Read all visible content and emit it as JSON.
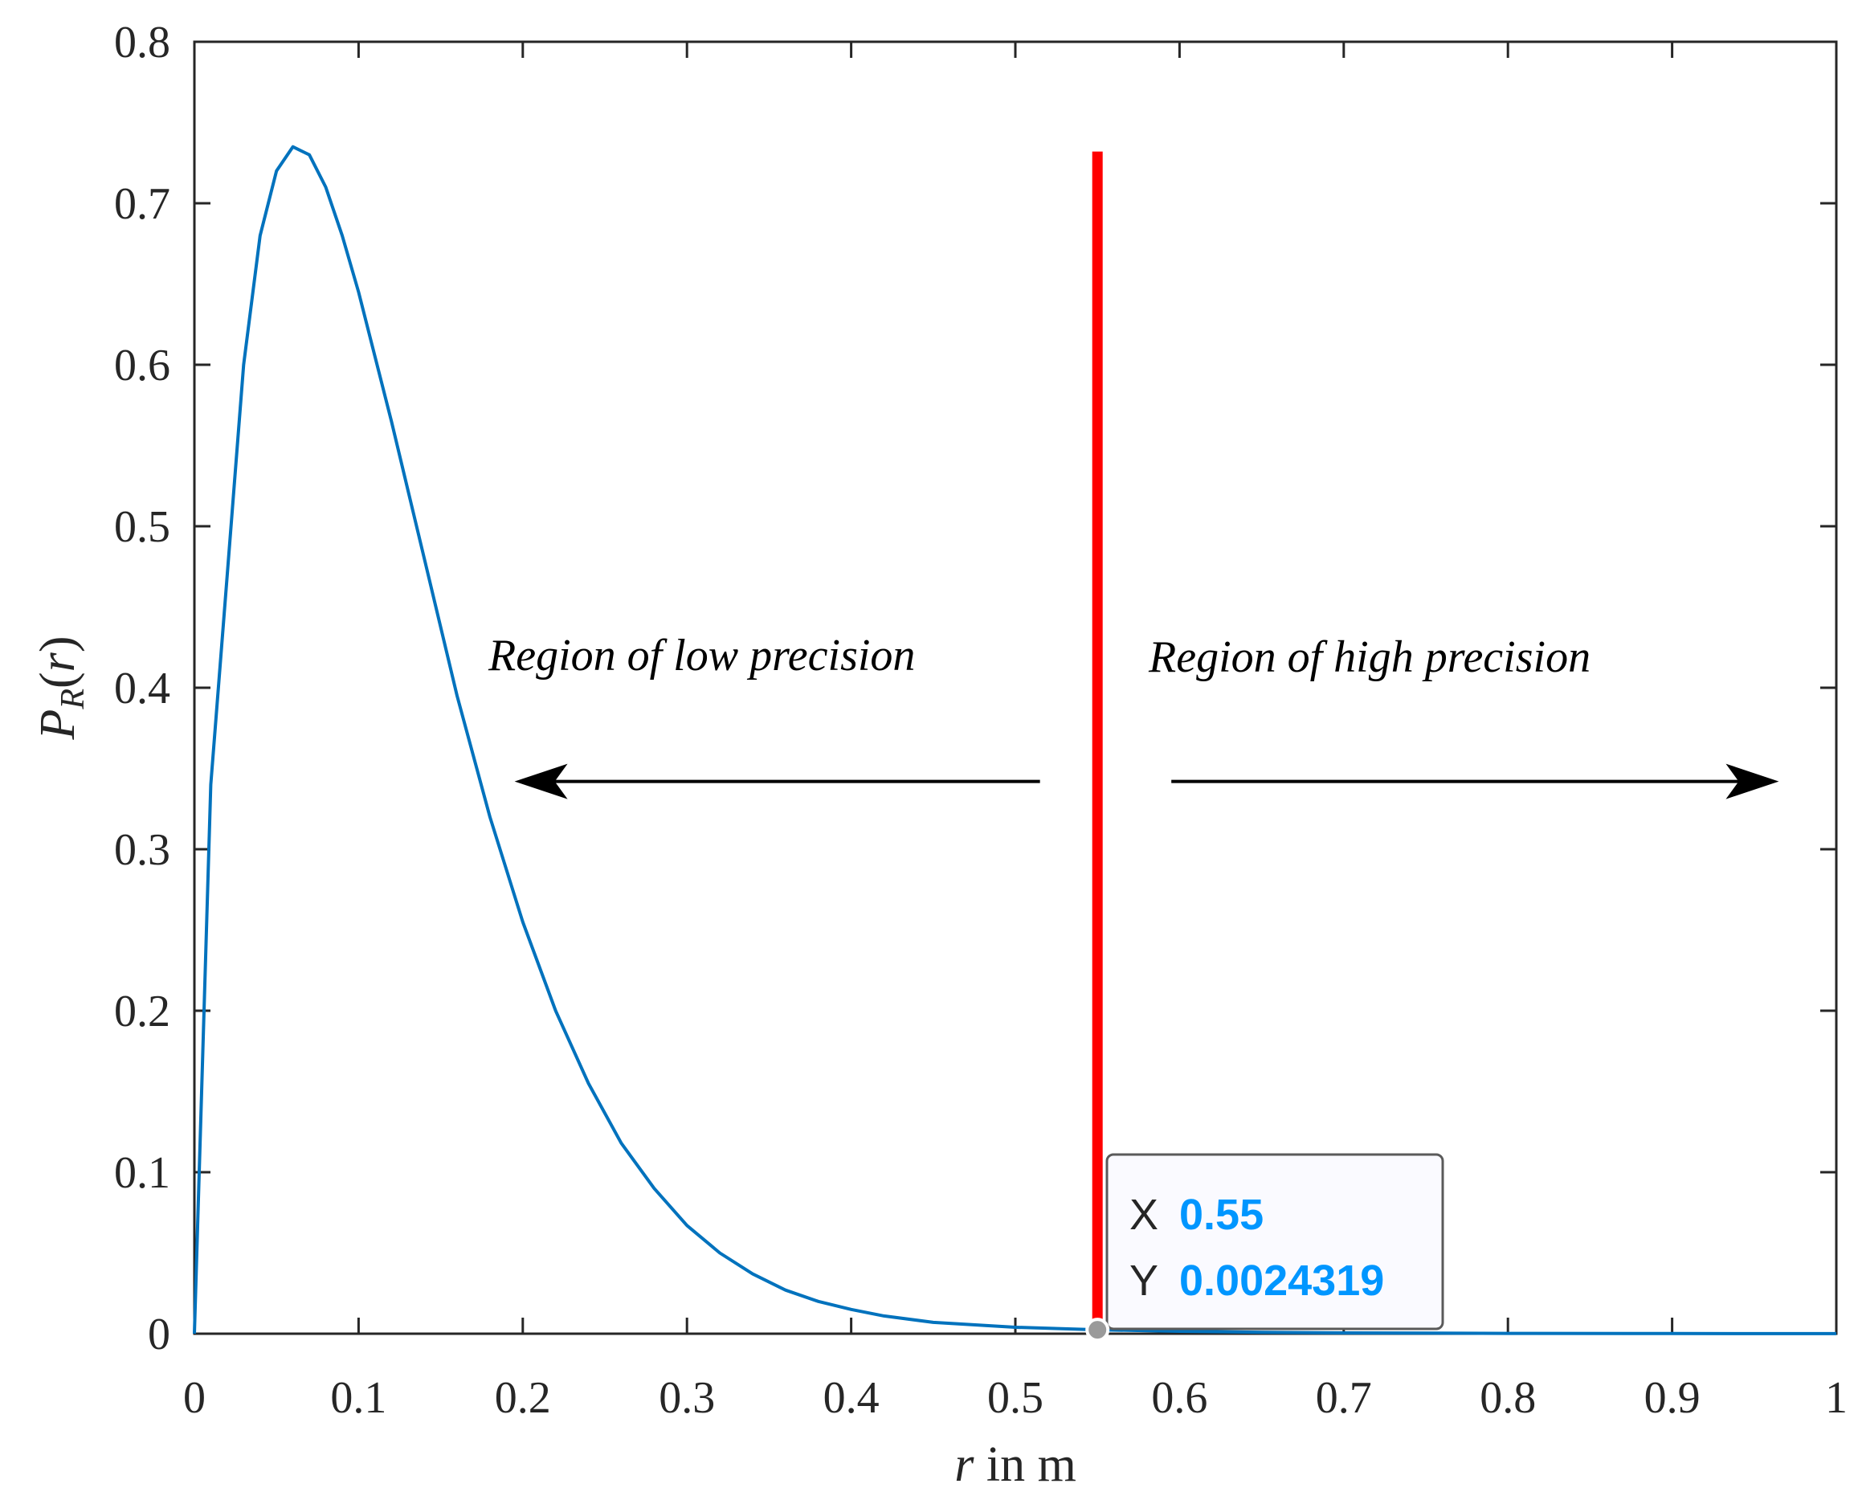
{
  "chart_data": {
    "type": "line",
    "xlabel_var": "r",
    "xlabel_rest": " in m",
    "ylabel": "PR(r)",
    "ylabel_main": "P",
    "ylabel_sub": "R",
    "ylabel_paren_open": "(",
    "ylabel_var": "r",
    "ylabel_paren_close": ")",
    "xlim": [
      0,
      1
    ],
    "ylim": [
      0,
      0.8
    ],
    "xticks": [
      0,
      0.1,
      0.2,
      0.3,
      0.4,
      0.5,
      0.6,
      0.7,
      0.8,
      0.9,
      1
    ],
    "xtick_labels": [
      "0",
      "0.1",
      "0.2",
      "0.3",
      "0.4",
      "0.5",
      "0.6",
      "0.7",
      "0.8",
      "0.9",
      "1"
    ],
    "yticks": [
      0,
      0.1,
      0.2,
      0.3,
      0.4,
      0.5,
      0.6,
      0.7,
      0.8
    ],
    "ytick_labels": [
      "0",
      "0.1",
      "0.2",
      "0.3",
      "0.4",
      "0.5",
      "0.6",
      "0.7",
      "0.8"
    ],
    "grid": false,
    "series": [
      {
        "name": "PR(r)",
        "color": "#0072BD",
        "x": [
          0,
          0.01,
          0.02,
          0.03,
          0.04,
          0.05,
          0.06,
          0.07,
          0.08,
          0.09,
          0.1,
          0.12,
          0.14,
          0.16,
          0.18,
          0.2,
          0.22,
          0.24,
          0.26,
          0.28,
          0.3,
          0.32,
          0.34,
          0.36,
          0.38,
          0.4,
          0.42,
          0.45,
          0.5,
          0.55,
          0.6,
          0.65,
          0.7,
          0.8,
          0.9,
          1.0
        ],
        "y": [
          0,
          0.34,
          0.47,
          0.6,
          0.68,
          0.72,
          0.735,
          0.73,
          0.71,
          0.68,
          0.645,
          0.565,
          0.48,
          0.395,
          0.32,
          0.255,
          0.2,
          0.155,
          0.118,
          0.09,
          0.067,
          0.05,
          0.037,
          0.027,
          0.02,
          0.015,
          0.011,
          0.007,
          0.004,
          0.0024319,
          0.0015,
          0.0009,
          0.0005,
          0.0002,
          0.0001,
          4e-05
        ]
      }
    ],
    "threshold": {
      "x": 0.55,
      "y_top": 0.732,
      "color": "#FF0000"
    },
    "annotations": [
      {
        "text": "Region of low precision"
      },
      {
        "text": "Region of high precision"
      }
    ],
    "arrows": [
      {
        "direction": "left",
        "from_x": 0.515,
        "to_x": 0.195,
        "y": 0.342
      },
      {
        "direction": "right",
        "from_x": 0.595,
        "to_x": 0.965,
        "y": 0.342
      }
    ],
    "datatip": {
      "x_key": "X",
      "x_value": "0.55",
      "y_key": "Y",
      "y_value": "0.0024319",
      "value_color": "#0096FF",
      "point_x": 0.55,
      "point_y": 0.0024319
    }
  }
}
